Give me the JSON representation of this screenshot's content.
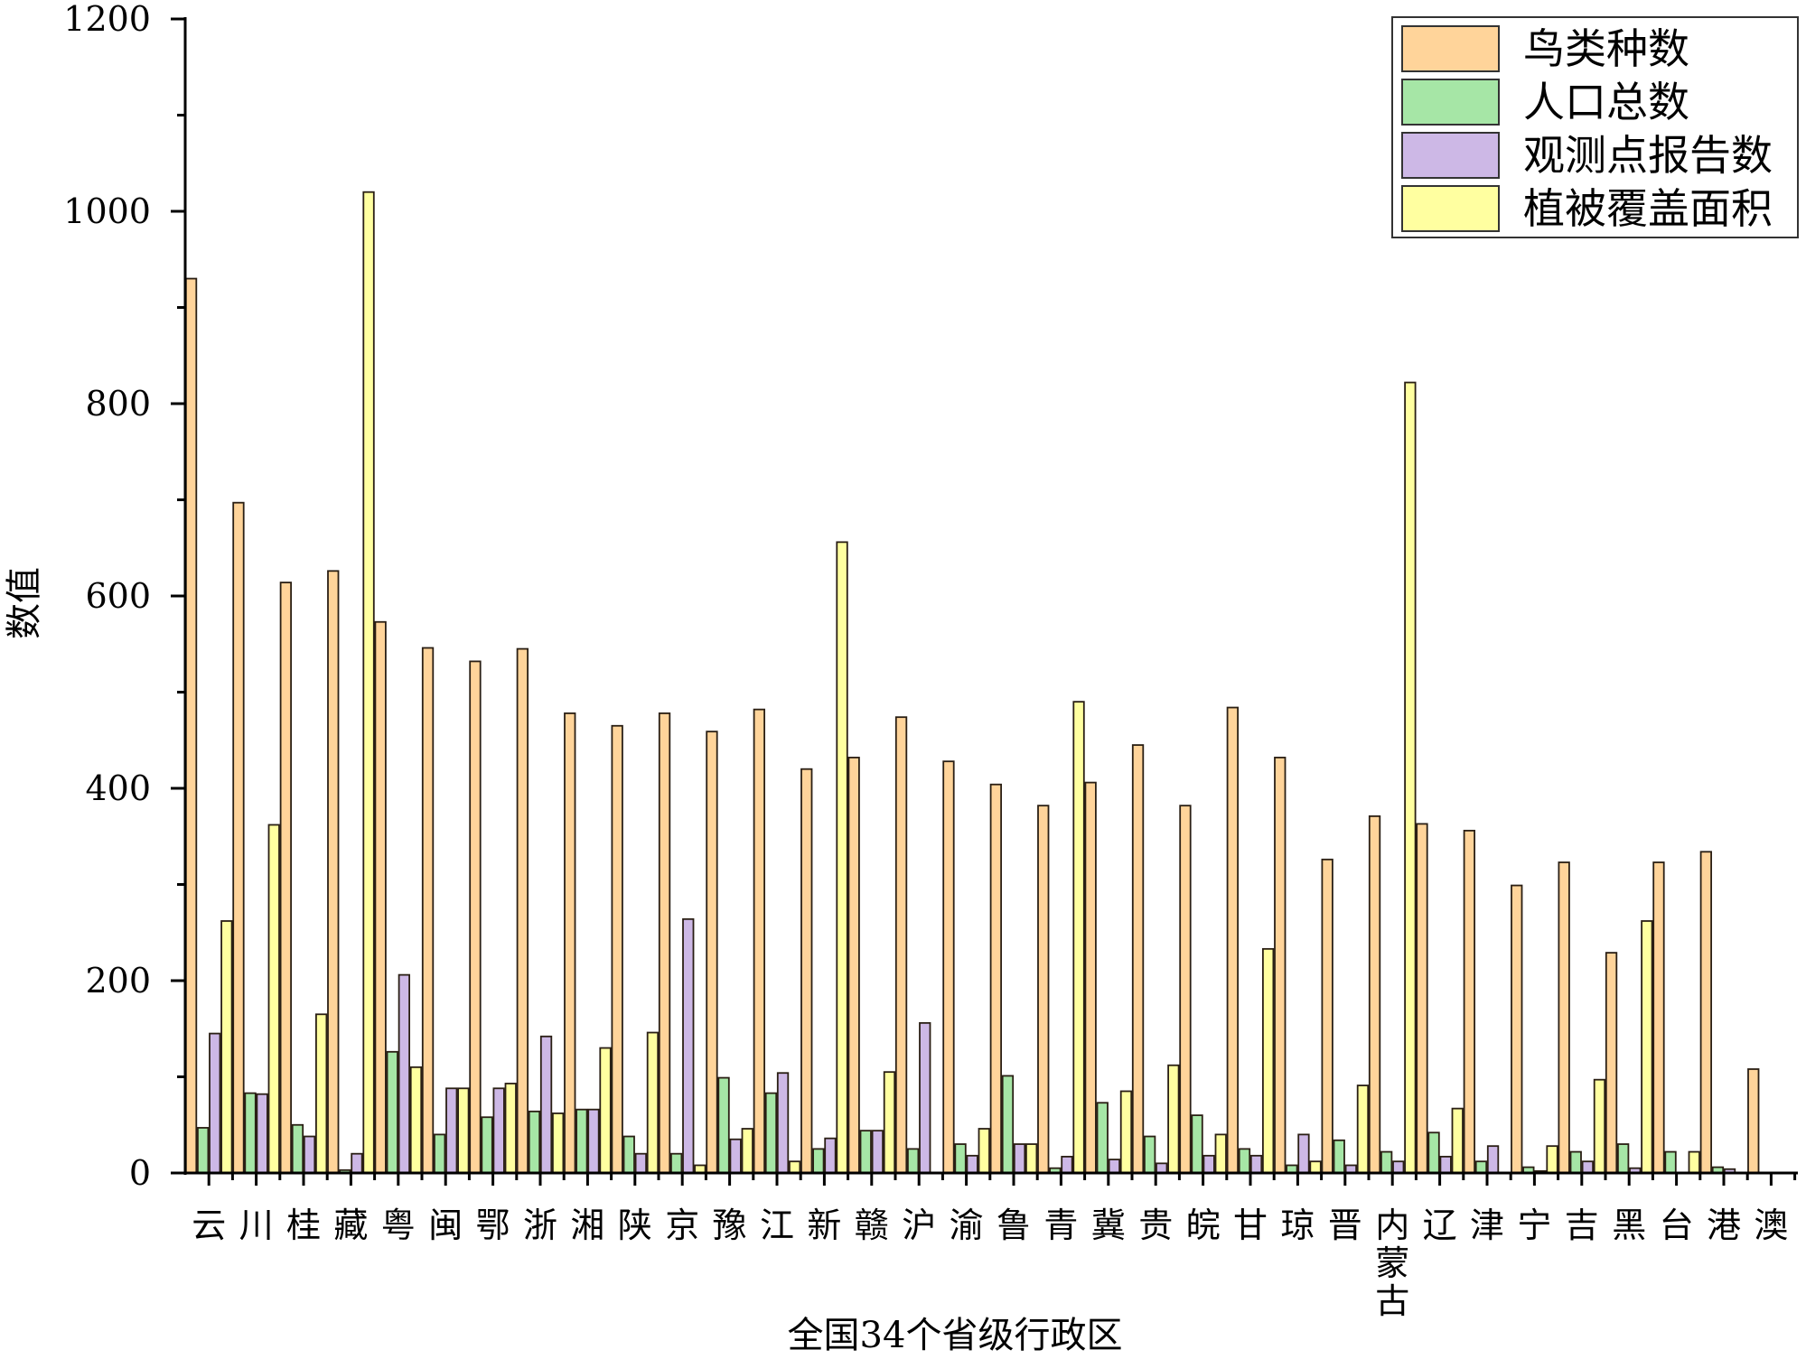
{
  "chart_data": {
    "type": "bar",
    "title": "",
    "xlabel": "全国34个省级行政区",
    "ylabel": "数值",
    "ylim": [
      0,
      1200
    ],
    "yticks": [
      0,
      200,
      400,
      600,
      800,
      1000,
      1200
    ],
    "grid": false,
    "legend_position": "top-right",
    "categories": [
      "云",
      "川",
      "桂",
      "藏",
      "粤",
      "闽",
      "鄂",
      "浙",
      "湘",
      "陕",
      "京",
      "豫",
      "江",
      "新",
      "赣",
      "沪",
      "渝",
      "鲁",
      "青",
      "冀",
      "贵",
      "皖",
      "甘",
      "琼",
      "晋",
      "内蒙古",
      "辽",
      "津",
      "宁",
      "吉",
      "黑",
      "台",
      "港",
      "澳"
    ],
    "series": [
      {
        "name": "鸟类种数",
        "color": "#FFD49A",
        "values": [
          930,
          697,
          614,
          626,
          573,
          546,
          532,
          545,
          478,
          465,
          478,
          459,
          482,
          420,
          432,
          474,
          428,
          404,
          382,
          406,
          445,
          382,
          484,
          432,
          326,
          371,
          363,
          356,
          299,
          323,
          229,
          323,
          334,
          108
        ]
      },
      {
        "name": "人口总数",
        "color": "#A6E6A6",
        "values": [
          47,
          83,
          50,
          3,
          126,
          40,
          58,
          64,
          66,
          38,
          20,
          99,
          83,
          25,
          44,
          25,
          30,
          101,
          5,
          73,
          38,
          60,
          25,
          8,
          34,
          22,
          42,
          12,
          6,
          22,
          30,
          22,
          6,
          0
        ]
      },
      {
        "name": "观测点报告数",
        "color": "#CDB8E6",
        "values": [
          145,
          82,
          38,
          20,
          206,
          88,
          88,
          142,
          66,
          20,
          264,
          35,
          104,
          36,
          44,
          156,
          18,
          30,
          17,
          14,
          10,
          18,
          18,
          40,
          8,
          12,
          17,
          28,
          2,
          12,
          5,
          0,
          4,
          0
        ]
      },
      {
        "name": "植被覆盖面积",
        "color": "#FFFFA0",
        "values": [
          262,
          362,
          165,
          1020,
          110,
          88,
          93,
          62,
          130,
          146,
          8,
          46,
          12,
          656,
          105,
          0,
          46,
          30,
          490,
          85,
          112,
          40,
          233,
          12,
          91,
          822,
          67,
          0,
          28,
          97,
          262,
          22,
          0,
          0
        ]
      }
    ]
  }
}
